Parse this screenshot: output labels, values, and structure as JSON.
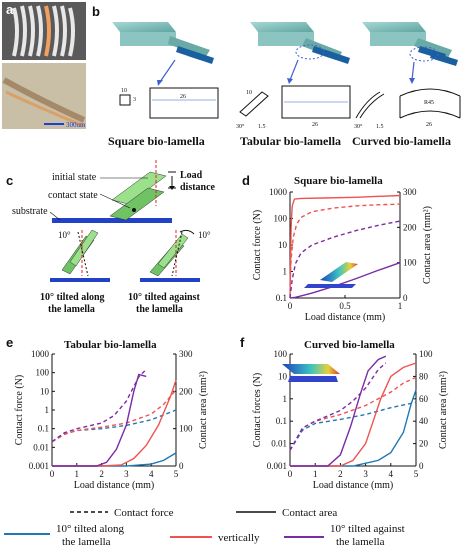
{
  "panel_labels": {
    "a": "a",
    "b": "b",
    "c": "c",
    "d": "d",
    "e": "e",
    "f": "f"
  },
  "panel_a": {
    "scale_bar": "300um"
  },
  "panel_b": {
    "titles": [
      "Square bio-lamella",
      "Tabular bio-lamella",
      "Curved bio-lamella"
    ],
    "dims": {
      "square": {
        "w": "10",
        "h": "3",
        "len": "26"
      },
      "tabular": {
        "w": "10",
        "angle": "30°",
        "t": "1.5",
        "len": "26"
      },
      "curved": {
        "angle": "30°",
        "t": "1.5",
        "r": "R45",
        "len": "26"
      }
    }
  },
  "panel_c": {
    "initial_state": "initial state",
    "contact_state": "contact state",
    "substrate": "substrate",
    "load_distance": [
      "Load",
      "distance"
    ],
    "angle": "10°",
    "caption_along": [
      "10° tilted along",
      "the lamella"
    ],
    "caption_against": [
      "10° tilted against",
      "the lamella"
    ]
  },
  "colors": {
    "along": "#1f77b4",
    "vertical": "#ef5350",
    "against": "#7b2ba5",
    "axis": "#111111"
  },
  "legend": {
    "contact_force": "Contact force",
    "contact_area": "Contact area",
    "along": [
      "10° tilted along",
      "the lamella"
    ],
    "vertical": "vertically",
    "against": [
      "10° tilted against",
      "the lamella"
    ]
  },
  "chart_data": [
    {
      "panel": "d",
      "type": "line",
      "title": "Square bio-lamella",
      "xlabel": "Load distance (mm)",
      "ylabel": "Contact force (N)",
      "y2label": "Contact area (mm²)",
      "xlim": [
        0,
        1
      ],
      "ylim": [
        0.1,
        1000
      ],
      "y2lim": [
        0,
        300
      ],
      "ylog": true,
      "xticks": [
        "0",
        "0.5",
        "1"
      ],
      "yticks": [
        "0.1",
        "1",
        "10",
        "100",
        "1000"
      ],
      "y2ticks": [
        "0",
        "100",
        "200",
        "300"
      ],
      "series": [
        {
          "name": "vertically",
          "measure": "Contact force",
          "style": "dashed",
          "x": [
            0,
            0.01,
            0.03,
            0.06,
            0.1,
            0.2,
            0.4,
            0.6,
            0.8,
            1
          ],
          "y": [
            0.3,
            3,
            20,
            60,
            110,
            180,
            250,
            300,
            330,
            350
          ]
        },
        {
          "name": "vertically",
          "measure": "Contact area",
          "style": "solid",
          "x": [
            0,
            0.01,
            0.02,
            0.04,
            0.1,
            0.3,
            0.6,
            1
          ],
          "y": [
            0,
            200,
            260,
            280,
            282,
            283,
            285,
            290
          ]
        },
        {
          "name": "10° tilted against the lamella",
          "measure": "Contact force",
          "style": "dashed",
          "x": [
            0,
            0.02,
            0.05,
            0.1,
            0.2,
            0.4,
            0.6,
            0.8,
            1
          ],
          "y": [
            0.1,
            0.5,
            2,
            5,
            10,
            20,
            35,
            55,
            80
          ]
        },
        {
          "name": "10° tilted against the lamella",
          "measure": "Contact area",
          "style": "solid",
          "x": [
            0,
            0.05,
            0.1,
            0.2,
            0.4,
            0.6,
            0.8,
            1
          ],
          "y": [
            0,
            2,
            6,
            14,
            33,
            55,
            78,
            100
          ]
        }
      ]
    },
    {
      "panel": "e",
      "type": "line",
      "title": "Tabular bio-lamella",
      "xlabel": "Load distance (mm)",
      "ylabel": "Contact force (N)",
      "y2label": "Contact area (mm²)",
      "xlim": [
        0,
        5
      ],
      "ylim": [
        0.001,
        1000
      ],
      "y2lim": [
        0,
        300
      ],
      "ylog": true,
      "xticks": [
        "0",
        "1",
        "2",
        "3",
        "4",
        "5"
      ],
      "yticks": [
        "0.001",
        "0.01",
        "0.1",
        "1",
        "10",
        "100",
        "1000"
      ],
      "y2ticks": [
        "0",
        "100",
        "200",
        "300"
      ],
      "series": [
        {
          "name": "10° tilted along the lamella",
          "measure": "Contact force",
          "style": "dashed",
          "x": [
            0,
            0.5,
            1,
            2,
            3,
            4,
            5
          ],
          "y": [
            0.02,
            0.05,
            0.08,
            0.1,
            0.15,
            0.3,
            1
          ]
        },
        {
          "name": "10° tilted along the lamella",
          "measure": "Contact area",
          "style": "solid",
          "x": [
            0,
            1,
            2,
            3,
            4,
            4.5,
            5
          ],
          "y": [
            0,
            0,
            0,
            0,
            5,
            15,
            35
          ]
        },
        {
          "name": "vertically",
          "measure": "Contact force",
          "style": "dashed",
          "x": [
            0,
            0.5,
            1,
            2,
            3,
            4,
            4.5,
            5
          ],
          "y": [
            0.02,
            0.05,
            0.08,
            0.12,
            0.2,
            0.6,
            2,
            12
          ]
        },
        {
          "name": "vertically",
          "measure": "Contact area",
          "style": "solid",
          "x": [
            0,
            2,
            2.8,
            3.3,
            3.8,
            4.3,
            4.8,
            5
          ],
          "y": [
            0,
            0,
            3,
            20,
            55,
            110,
            190,
            230
          ]
        },
        {
          "name": "10° tilted against the lamella",
          "measure": "Contact force",
          "style": "dashed",
          "x": [
            0,
            0.5,
            1,
            2,
            2.5,
            3,
            3.5,
            3.8
          ],
          "y": [
            0.02,
            0.06,
            0.1,
            0.2,
            0.5,
            3,
            60,
            150
          ]
        },
        {
          "name": "10° tilted against the lamella",
          "measure": "Contact area",
          "style": "solid",
          "x": [
            0,
            1.8,
            2.2,
            2.6,
            3,
            3.3,
            3.5,
            3.8
          ],
          "y": [
            0,
            0,
            10,
            45,
            110,
            200,
            245,
            240
          ]
        }
      ]
    },
    {
      "panel": "f",
      "type": "line",
      "title": "Curved bio-lamella",
      "xlabel": "Load distance (mm)",
      "ylabel": "Contact forces (N)",
      "y2label": "Contact area (mm²)",
      "xlim": [
        0,
        5
      ],
      "ylim": [
        0.001,
        100
      ],
      "y2lim": [
        0,
        100
      ],
      "ylog": true,
      "xticks": [
        "0",
        "1",
        "2",
        "3",
        "4",
        "5"
      ],
      "yticks": [
        "0.001",
        "0.01",
        "0.1",
        "1",
        "10",
        "100"
      ],
      "y2ticks": [
        "0",
        "20",
        "40",
        "60",
        "80",
        "100"
      ],
      "series": [
        {
          "name": "10° tilted along the lamella",
          "measure": "Contact force",
          "style": "dashed",
          "x": [
            0,
            0.5,
            1,
            2,
            3,
            4,
            5
          ],
          "y": [
            0.005,
            0.04,
            0.08,
            0.12,
            0.2,
            0.4,
            0.7
          ]
        },
        {
          "name": "10° tilted along the lamella",
          "measure": "Contact area",
          "style": "solid",
          "x": [
            0,
            2.5,
            3.5,
            4,
            4.5,
            4.8,
            5
          ],
          "y": [
            0,
            0,
            5,
            12,
            30,
            55,
            68
          ]
        },
        {
          "name": "vertically",
          "measure": "Contact force",
          "style": "dashed",
          "x": [
            0,
            0.5,
            1,
            2,
            3,
            3.5,
            4,
            4.5,
            5
          ],
          "y": [
            0.005,
            0.05,
            0.1,
            0.2,
            0.5,
            1,
            2,
            5,
            9
          ]
        },
        {
          "name": "vertically",
          "measure": "Contact area",
          "style": "solid",
          "x": [
            0,
            2,
            2.5,
            3,
            3.3,
            3.6,
            4,
            4.5,
            5
          ],
          "y": [
            0,
            0,
            5,
            20,
            40,
            60,
            80,
            88,
            92
          ]
        },
        {
          "name": "10° tilted against the lamella",
          "measure": "Contact force",
          "style": "dashed",
          "x": [
            0,
            0.5,
            1,
            2,
            2.5,
            3,
            3.5,
            3.8
          ],
          "y": [
            0.005,
            0.05,
            0.1,
            0.3,
            0.8,
            3,
            20,
            40
          ]
        },
        {
          "name": "10° tilted against the lamella",
          "measure": "Contact area",
          "style": "solid",
          "x": [
            0,
            1.5,
            2,
            2.4,
            2.8,
            3.1,
            3.5,
            3.8
          ],
          "y": [
            0,
            0,
            10,
            35,
            65,
            85,
            95,
            98
          ]
        }
      ]
    }
  ]
}
